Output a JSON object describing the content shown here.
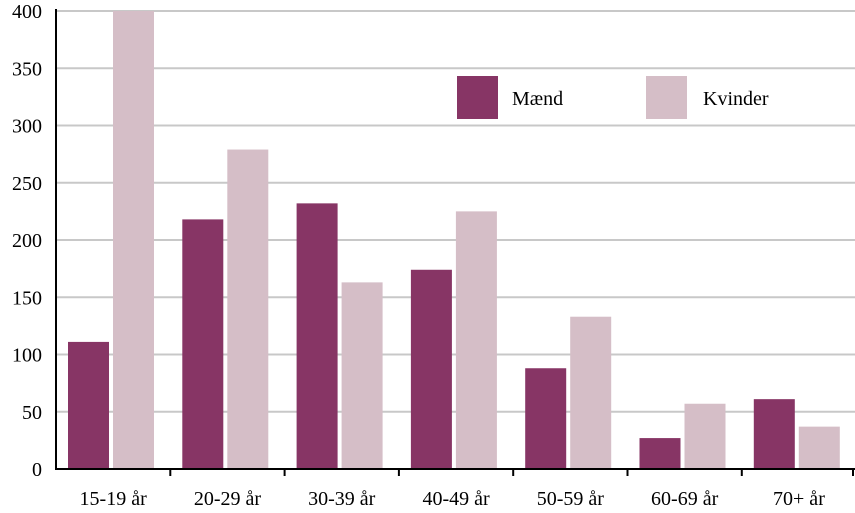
{
  "chart_data": {
    "type": "bar",
    "title": "",
    "xlabel": "",
    "ylabel": "",
    "categories": [
      "15-19 år",
      "20-29 år",
      "30-39 år",
      "40-49 år",
      "50-59 år",
      "60-69 år",
      "70+ år"
    ],
    "series": [
      {
        "name": "Mænd",
        "color": "#873565",
        "values": [
          111,
          218,
          232,
          174,
          88,
          27,
          61
        ]
      },
      {
        "name": "Kvinder",
        "color": "#d5bec7",
        "values": [
          400,
          279,
          163,
          225,
          133,
          57,
          37
        ]
      }
    ],
    "ylim": [
      0,
      400
    ],
    "yticks": [
      0,
      50,
      100,
      150,
      200,
      250,
      300,
      350,
      400
    ],
    "grid": true,
    "gridlines_color": "#c8c8c8",
    "axis_color": "#000000",
    "legend_placement": "top-right"
  }
}
